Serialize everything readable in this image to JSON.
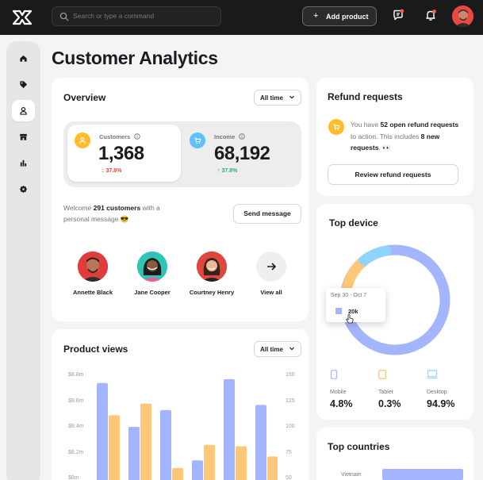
{
  "topbar": {
    "search_placeholder": "Search or type a command",
    "add_product_label": "Add product"
  },
  "page": {
    "title": "Customer Analytics"
  },
  "overview": {
    "title": "Overview",
    "range": "All time",
    "customers": {
      "label": "Customers",
      "value": "1,368",
      "delta": "37.8%",
      "delta_dir": "down"
    },
    "income": {
      "label": "Income",
      "value": "68,192",
      "delta": "37.8%",
      "delta_dir": "up"
    },
    "welcome_pre": "Welcome ",
    "welcome_count": "291 customers",
    "welcome_post": " with a personal message 😎",
    "send_message": "Send message",
    "people": [
      {
        "name": "Annette Black"
      },
      {
        "name": "Jane Cooper"
      },
      {
        "name": "Courtney Henry"
      }
    ],
    "view_all": "View all"
  },
  "refund": {
    "title": "Refund requests",
    "text_pre": "You have ",
    "open_count": "52 open refund requests",
    "text_mid": " to action. This includes ",
    "new_count": "8 new requests",
    "text_end": ". 👀",
    "button": "Review refund requests"
  },
  "top_device": {
    "title": "Top device",
    "tooltip_date": "Sep 30 - Oct 7",
    "tooltip_value": "20k",
    "devices": [
      {
        "name": "Mobile",
        "percent": "4.8%",
        "color": "#a4b5ff"
      },
      {
        "name": "Tablet",
        "percent": "0.3%",
        "color": "#ffbc66"
      },
      {
        "name": "Desktop",
        "percent": "94.9%",
        "color": "#8fd3ff"
      }
    ]
  },
  "top_countries": {
    "title": "Top countries",
    "first_country": "Vietnam"
  },
  "product_views": {
    "title": "Product views",
    "range": "All time",
    "y_left_ticks": [
      "$8.8m",
      "$8.6m",
      "$8.4m",
      "$8.2m",
      "$8m"
    ],
    "y_right_ticks": [
      "150",
      "125",
      "100",
      "75",
      "50"
    ]
  },
  "chart_data": {
    "type": "bar",
    "title": "Product views",
    "y_left_ticks": [
      "$8.8m",
      "$8.6m",
      "$8.4m",
      "$8.2m",
      "$8m"
    ],
    "y_right_ticks": [
      "150",
      "125",
      "100",
      "75",
      "50"
    ],
    "ylim": [
      8.0,
      8.8
    ],
    "series": [
      {
        "values": [
          8.74,
          8.4,
          8.53,
          8.14,
          8.77,
          8.57
        ],
        "color": "#a4b5ff"
      },
      {
        "values": [
          8.49,
          8.58,
          8.08,
          8.26,
          8.25,
          8.17
        ],
        "color": "#ffc778"
      }
    ]
  },
  "colors": {
    "accent_blue": "#a4b5ff",
    "accent_orange": "#ffbc66",
    "accent_cyan": "#8fd3ff",
    "positive": "#2eaa6b",
    "negative": "#e0463e",
    "customers_icon_bg": "#ffbc2c",
    "income_icon_bg": "#5ec2ff"
  }
}
